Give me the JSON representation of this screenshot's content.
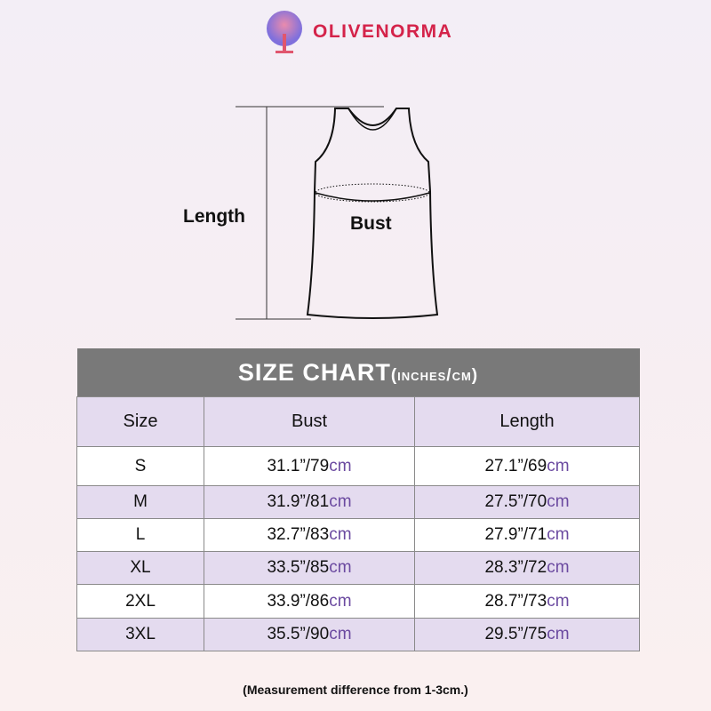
{
  "brand": {
    "name": "OLIVENORMA"
  },
  "diagram": {
    "length_label": "Length",
    "bust_label": "Bust"
  },
  "table": {
    "title": "SIZE CHART",
    "title_units": "(inches/cm)",
    "headers": [
      "Size",
      "Bust",
      "Length"
    ],
    "rows": [
      {
        "size": "S",
        "bust_in": "31.1”/79",
        "length_in": "27.1”/69"
      },
      {
        "size": "M",
        "bust_in": "31.9”/81",
        "length_in": "27.5”/70"
      },
      {
        "size": "L",
        "bust_in": "32.7”/83",
        "length_in": "27.9”/71"
      },
      {
        "size": "XL",
        "bust_in": "33.5”/85",
        "length_in": "28.3”/72"
      },
      {
        "size": "2XL",
        "bust_in": "33.9”/86",
        "length_in": "28.7”/73"
      },
      {
        "size": "3XL",
        "bust_in": "35.5”/90",
        "length_in": "29.5”/75"
      }
    ],
    "unit": "cm"
  },
  "note": "(Measurement difference from 1-3cm.)",
  "colors": {
    "brand": "#d4234a",
    "header_bg": "#797979",
    "row_alt": "#e4dbef",
    "cm": "#6b4aa0"
  }
}
